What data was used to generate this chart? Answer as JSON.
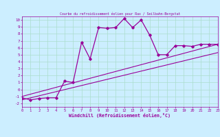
{
  "title": "Courbe du refroidissement éolien pour Rax / Seilbahn-Bergstat",
  "xlabel": "Windchill (Refroidissement éolien,°C)",
  "bg_color": "#cceeff",
  "line_color": "#990099",
  "grid_color": "#aaddcc",
  "x_min": 0,
  "x_max": 23,
  "y_min": -2.5,
  "y_max": 10.5,
  "main_line_x": [
    0,
    1,
    2,
    3,
    4,
    5,
    6,
    7,
    8,
    9,
    10,
    11,
    12,
    13,
    14,
    15,
    16,
    17,
    18,
    19,
    20,
    21,
    22,
    23
  ],
  "main_line_y": [
    -1.2,
    -1.5,
    -1.3,
    -1.2,
    -1.2,
    1.2,
    1.0,
    6.8,
    4.4,
    8.9,
    8.8,
    8.9,
    10.2,
    8.9,
    10.0,
    7.8,
    5.0,
    5.0,
    6.3,
    6.3,
    6.2,
    6.5,
    6.5,
    6.5
  ],
  "diag_line1_x": [
    0,
    23
  ],
  "diag_line1_y": [
    -1.5,
    5.3
  ],
  "diag_line2_x": [
    0,
    23
  ],
  "diag_line2_y": [
    -1.0,
    6.5
  ],
  "yticks": [
    -2,
    -1,
    0,
    1,
    2,
    3,
    4,
    5,
    6,
    7,
    8,
    9,
    10
  ],
  "xticks": [
    0,
    1,
    2,
    3,
    4,
    5,
    6,
    7,
    8,
    9,
    10,
    11,
    12,
    13,
    14,
    15,
    16,
    17,
    18,
    19,
    20,
    21,
    22,
    23
  ]
}
